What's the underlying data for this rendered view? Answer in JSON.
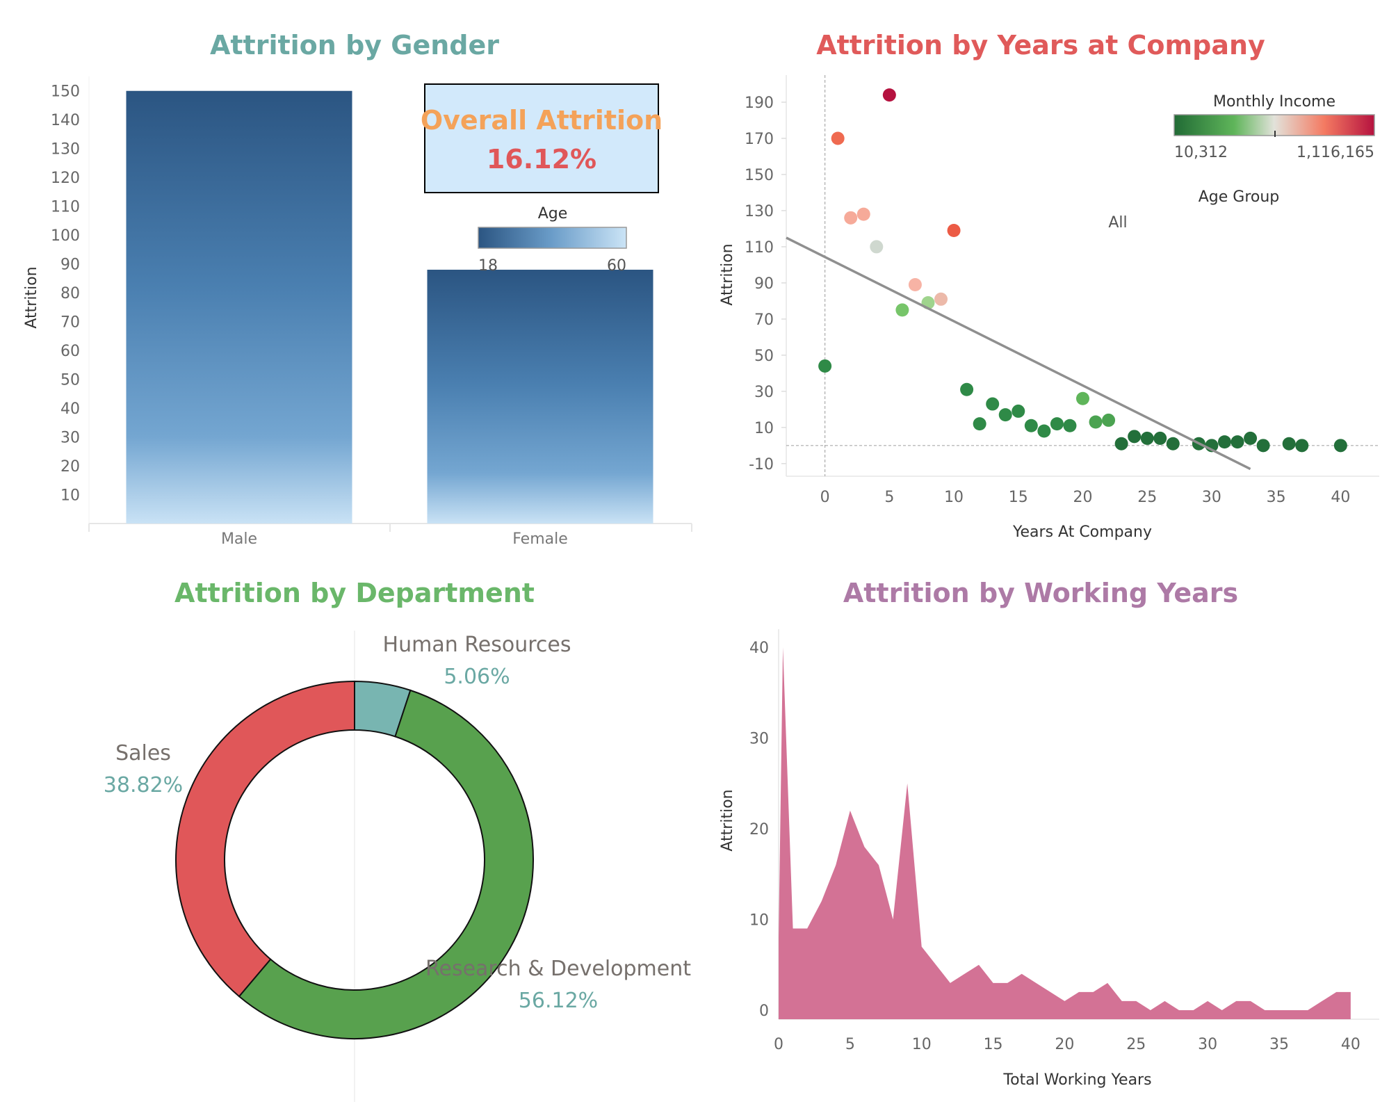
{
  "overall": {
    "label": "Overall Attrition",
    "value": "16.12%"
  },
  "chart_data": [
    {
      "type": "bar",
      "title": "Attrition by Gender",
      "title_color": "#6aa8a3",
      "xlabel": "",
      "ylabel": "Attrition",
      "categories": [
        "Male",
        "Female"
      ],
      "values": [
        150,
        88
      ],
      "ylim": [
        0,
        155
      ],
      "yticks": [
        10,
        20,
        30,
        40,
        50,
        60,
        70,
        80,
        90,
        100,
        110,
        120,
        130,
        140,
        150
      ],
      "legend": {
        "title": "Age",
        "min_label": "18",
        "max_label": "60",
        "color_low": "#2b5582",
        "color_high": "#cbe4f6"
      }
    },
    {
      "type": "scatter",
      "title": "Attrition by Years at Company",
      "title_color": "#e05a5a",
      "xlabel": "Years At Company",
      "ylabel": "Attrition",
      "xlim": [
        -3,
        43
      ],
      "ylim": [
        -17,
        205
      ],
      "xticks": [
        0,
        5,
        10,
        15,
        20,
        25,
        30,
        35,
        40
      ],
      "yticks": [
        -10,
        10,
        30,
        50,
        70,
        90,
        110,
        130,
        150,
        170,
        190
      ],
      "color_legend": {
        "title": "Monthly Income",
        "min_label": "10,312",
        "max_label": "1,116,165"
      },
      "filter": {
        "title": "Age Group",
        "value": "All"
      },
      "trend_line": {
        "x1": -3,
        "y1": 115,
        "x2": 33,
        "y2": -13
      },
      "points": [
        {
          "x": 0,
          "y": 44,
          "color": "#2f8a47"
        },
        {
          "x": 1,
          "y": 170,
          "color": "#ef6a50"
        },
        {
          "x": 2,
          "y": 126,
          "color": "#f6aa99"
        },
        {
          "x": 3,
          "y": 128,
          "color": "#f6aa99"
        },
        {
          "x": 4,
          "y": 110,
          "color": "#cfd8cf"
        },
        {
          "x": 5,
          "y": 194,
          "color": "#b5123f"
        },
        {
          "x": 6,
          "y": 75,
          "color": "#77c56a"
        },
        {
          "x": 7,
          "y": 89,
          "color": "#f7b3a5"
        },
        {
          "x": 8,
          "y": 79,
          "color": "#9fd48d"
        },
        {
          "x": 9,
          "y": 81,
          "color": "#ecb9a9"
        },
        {
          "x": 10,
          "y": 119,
          "color": "#ec5b45"
        },
        {
          "x": 11,
          "y": 31,
          "color": "#2f8a47"
        },
        {
          "x": 12,
          "y": 12,
          "color": "#2f8a47"
        },
        {
          "x": 13,
          "y": 23,
          "color": "#2f8a47"
        },
        {
          "x": 14,
          "y": 17,
          "color": "#2f8a47"
        },
        {
          "x": 15,
          "y": 19,
          "color": "#2f8a47"
        },
        {
          "x": 16,
          "y": 11,
          "color": "#2f8a47"
        },
        {
          "x": 17,
          "y": 8,
          "color": "#2f8a47"
        },
        {
          "x": 18,
          "y": 12,
          "color": "#2f8a47"
        },
        {
          "x": 19,
          "y": 11,
          "color": "#2f8a47"
        },
        {
          "x": 20,
          "y": 26,
          "color": "#5fb55a"
        },
        {
          "x": 21,
          "y": 13,
          "color": "#4ba351"
        },
        {
          "x": 22,
          "y": 14,
          "color": "#4ba351"
        },
        {
          "x": 23,
          "y": 1,
          "color": "#236f3a"
        },
        {
          "x": 24,
          "y": 5,
          "color": "#236f3a"
        },
        {
          "x": 25,
          "y": 4,
          "color": "#236f3a"
        },
        {
          "x": 26,
          "y": 4,
          "color": "#236f3a"
        },
        {
          "x": 27,
          "y": 1,
          "color": "#236f3a"
        },
        {
          "x": 29,
          "y": 1,
          "color": "#236f3a"
        },
        {
          "x": 30,
          "y": 0,
          "color": "#236f3a"
        },
        {
          "x": 31,
          "y": 2,
          "color": "#236f3a"
        },
        {
          "x": 32,
          "y": 2,
          "color": "#236f3a"
        },
        {
          "x": 33,
          "y": 4,
          "color": "#236f3a"
        },
        {
          "x": 34,
          "y": 0,
          "color": "#236f3a"
        },
        {
          "x": 36,
          "y": 1,
          "color": "#236f3a"
        },
        {
          "x": 37,
          "y": 0,
          "color": "#236f3a"
        },
        {
          "x": 40,
          "y": 0,
          "color": "#236f3a"
        }
      ]
    },
    {
      "type": "pie",
      "title": "Attrition by Department",
      "title_color": "#6ab76a",
      "slices": [
        {
          "label": "Human Resources",
          "value": 5.06,
          "display": "5.06%",
          "color": "#78b5b1"
        },
        {
          "label": "Research & Development",
          "value": 56.12,
          "display": "56.12%",
          "color": "#58a14e"
        },
        {
          "label": "Sales",
          "value": 38.82,
          "display": "38.82%",
          "color": "#e05759"
        }
      ]
    },
    {
      "type": "area",
      "title": "Attrition by Working Years",
      "title_color": "#ad7aa6",
      "xlabel": "Total Working Years",
      "ylabel": "Attrition",
      "xlim": [
        0,
        42
      ],
      "ylim": [
        -1,
        42
      ],
      "xticks": [
        0,
        5,
        10,
        15,
        20,
        25,
        30,
        35,
        40
      ],
      "yticks": [
        0,
        10,
        20,
        30,
        40
      ],
      "color": "#d37295",
      "x": [
        0,
        0.3,
        1,
        2,
        3,
        4,
        5,
        6,
        7,
        8,
        9,
        10,
        11,
        12,
        13,
        14,
        15,
        16,
        17,
        18,
        19,
        20,
        21,
        22,
        23,
        24,
        25,
        26,
        27,
        28,
        29,
        30,
        31,
        32,
        33,
        34,
        35,
        36,
        37,
        38,
        39,
        40
      ],
      "values": [
        8,
        40,
        9,
        9,
        12,
        16,
        22,
        18,
        16,
        10,
        25,
        7,
        5,
        3,
        4,
        5,
        3,
        3,
        4,
        3,
        2,
        1,
        2,
        2,
        3,
        1,
        1,
        0,
        1,
        0,
        0,
        1,
        0,
        1,
        1,
        0,
        0,
        0,
        0,
        1,
        2,
        2
      ]
    }
  ]
}
